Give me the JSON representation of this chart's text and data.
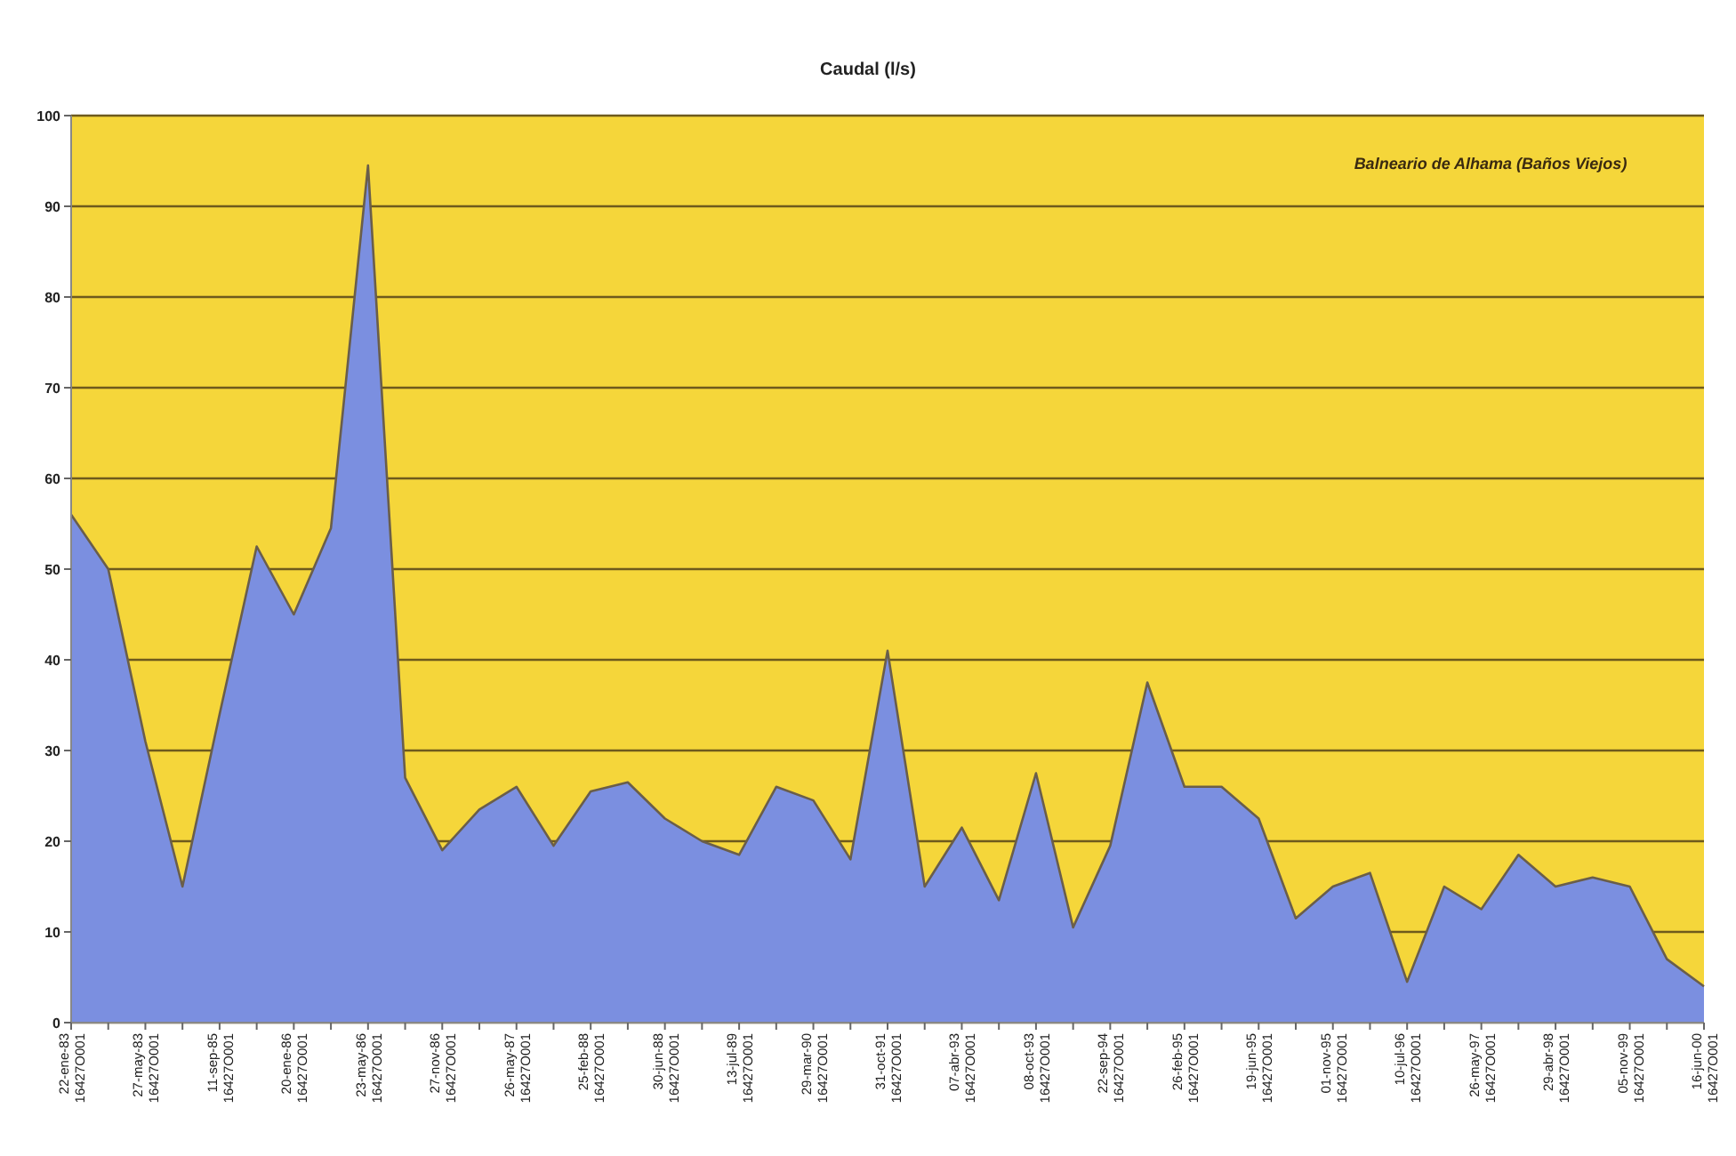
{
  "chart_data": {
    "type": "area",
    "title": "Caudal (l/s)",
    "annotations": [
      "Balneario de Alhama (Baños Viejos)"
    ],
    "categories": [
      "22-ene-83\n16427O001",
      null,
      "27-may-83\n16427O001",
      null,
      "11-sep-85\n16427O001",
      null,
      "20-ene-86\n16427O001",
      null,
      "23-may-86\n16427O001",
      null,
      "27-nov-86\n16427O001",
      null,
      "26-may-87\n16427O001",
      null,
      "25-feb-88\n16427O001",
      null,
      "30-jun-88\n16427O001",
      null,
      "13-jul-89\n16427O001",
      null,
      "29-mar-90\n16427O001",
      null,
      "31-oct-91\n16427O001",
      null,
      "07-abr-93\n16427O001",
      null,
      "08-oct-93\n16427O001",
      null,
      "22-sep-94\n16427O001",
      null,
      "26-feb-95\n16427O001",
      null,
      "19-jun-95\n16427O001",
      null,
      "01-nov-95\n16427O001",
      null,
      "10-jul-96\n16427O001",
      null,
      "26-may-97\n16427O001",
      null,
      "29-abr-98\n16427O001",
      null,
      "05-nov-99\n16427O001",
      null,
      "16-jun-00\n16427O001"
    ],
    "series": [
      {
        "color": "#7b8fe0",
        "values": [
          56,
          50,
          31,
          15,
          34,
          52.5,
          45,
          54.5,
          94.5,
          27,
          19,
          23.5,
          26,
          19.5,
          25.5,
          26.5,
          22.5,
          20,
          18.5,
          26,
          24.5,
          18,
          41,
          15,
          21.5,
          13.5,
          27.5,
          10.5,
          19.5,
          37.5,
          26,
          26,
          22.5,
          11.5,
          15,
          16.5,
          4.5,
          15,
          12.5,
          18.5,
          15,
          16,
          15,
          7,
          4
        ]
      }
    ],
    "ylim": [
      0,
      100
    ],
    "yticks": [
      0,
      10,
      20,
      30,
      40,
      50,
      60,
      70,
      80,
      90,
      100
    ],
    "grid": "y"
  }
}
